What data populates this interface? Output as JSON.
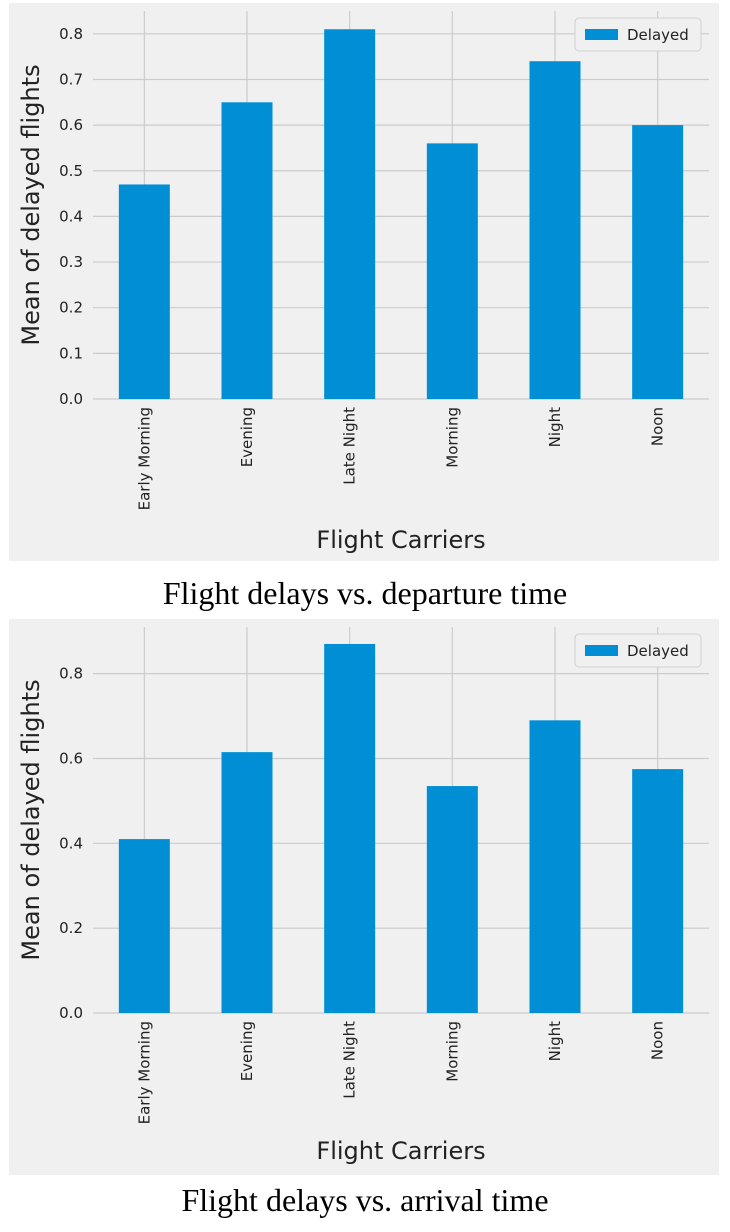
{
  "captions": [
    "Flight delays vs. departure time",
    "Flight delays vs. arrival time"
  ],
  "colors": {
    "bar": "#008fd5",
    "grid": "#cbcbcb",
    "background": "#f0f0f0"
  },
  "chart_data": [
    {
      "type": "bar",
      "title": "",
      "categories": [
        "Early Morning",
        "Evening",
        "Late Night",
        "Morning",
        "Night",
        "Noon"
      ],
      "series": [
        {
          "name": "Delayed",
          "values": [
            0.47,
            0.65,
            0.81,
            0.56,
            0.74,
            0.6
          ]
        }
      ],
      "xlabel": "Flight Carriers",
      "ylabel": "Mean of delayed flights",
      "ylim": [
        0,
        0.85
      ],
      "yticks": [
        0.0,
        0.1,
        0.2,
        0.3,
        0.4,
        0.5,
        0.6,
        0.7,
        0.8
      ],
      "ytick_labels": [
        "0.0",
        "0.1",
        "0.2",
        "0.3",
        "0.4",
        "0.5",
        "0.6",
        "0.7",
        "0.8"
      ],
      "grid": true,
      "legend": "top-right"
    },
    {
      "type": "bar",
      "title": "",
      "categories": [
        "Early Morning",
        "Evening",
        "Late Night",
        "Morning",
        "Night",
        "Noon"
      ],
      "series": [
        {
          "name": "Delayed",
          "values": [
            0.41,
            0.615,
            0.87,
            0.535,
            0.69,
            0.575
          ]
        }
      ],
      "xlabel": "Flight Carriers",
      "ylabel": "Mean of delayed flights",
      "ylim": [
        0,
        0.91
      ],
      "yticks": [
        0.0,
        0.2,
        0.4,
        0.6,
        0.8
      ],
      "ytick_labels": [
        "0.0",
        "0.2",
        "0.4",
        "0.6",
        "0.8"
      ],
      "grid": true,
      "legend": "top-right"
    }
  ]
}
